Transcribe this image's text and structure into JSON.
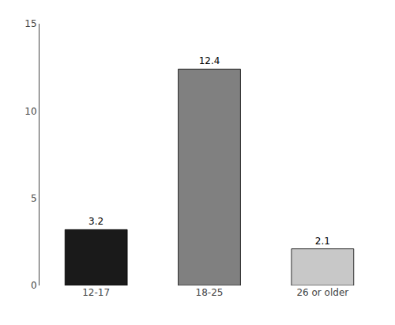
{
  "chart_data": {
    "type": "bar",
    "categories": [
      "12-17",
      "18-25",
      "26 or older"
    ],
    "values": [
      3.2,
      12.4,
      2.1
    ],
    "colors": [
      "#1a1a1a",
      "#808080",
      "#c8c8c8"
    ],
    "ylim": [
      0,
      15
    ],
    "yticks": [
      0,
      5,
      10,
      15
    ],
    "data_labels": true,
    "grid": false
  }
}
